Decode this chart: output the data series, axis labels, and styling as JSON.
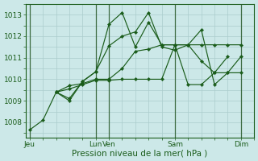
{
  "bg_color": "#cce8e8",
  "grid_color": "#aacccc",
  "line_color": "#1a5c1a",
  "marker_color": "#1a5c1a",
  "xlabel": "Pression niveau de la mer( hPa )",
  "ylim": [
    1007.3,
    1013.5
  ],
  "yticks": [
    1008,
    1009,
    1010,
    1011,
    1012,
    1013
  ],
  "major_xticks": [
    0,
    5,
    6,
    11,
    16
  ],
  "major_xlabels": [
    "Jeu",
    "Lun",
    "Ven",
    "Sam",
    "Dim"
  ],
  "xlim": [
    -0.3,
    17.0
  ],
  "series": [
    {
      "x": [
        0,
        1,
        2,
        3,
        4,
        5,
        6,
        7,
        8,
        9,
        10,
        11,
        12,
        13,
        14,
        15,
        16
      ],
      "y": [
        1007.65,
        1008.1,
        1009.4,
        1009.55,
        1009.75,
        1009.95,
        1009.95,
        1010.0,
        1010.0,
        1010.0,
        1010.0,
        1011.6,
        1011.6,
        1011.6,
        1011.6,
        1011.6,
        1011.6
      ]
    },
    {
      "x": [
        2,
        3,
        4,
        5,
        6,
        7,
        8,
        9,
        10,
        11,
        12,
        13,
        14,
        15,
        16
      ],
      "y": [
        1009.4,
        1009.7,
        1009.8,
        1010.0,
        1010.0,
        1010.5,
        1011.3,
        1011.4,
        1011.6,
        1011.6,
        1011.6,
        1010.85,
        1010.3,
        1010.3,
        1010.3
      ]
    },
    {
      "x": [
        2,
        3,
        4,
        5,
        6,
        7,
        8,
        9,
        10,
        11,
        12,
        13,
        14,
        15,
        16
      ],
      "y": [
        1009.4,
        1009.1,
        1009.9,
        1010.35,
        1011.55,
        1012.0,
        1012.2,
        1013.1,
        1011.5,
        1011.35,
        1011.6,
        1012.3,
        1009.75,
        1010.3,
        1011.05
      ]
    },
    {
      "x": [
        2,
        3,
        4,
        5,
        6,
        7,
        8,
        9,
        10,
        11,
        12,
        13,
        14,
        15
      ],
      "y": [
        1009.4,
        1009.0,
        1009.9,
        1010.35,
        1012.55,
        1013.1,
        1011.5,
        1012.65,
        1011.6,
        1011.6,
        1009.75,
        1009.75,
        1010.3,
        1011.05
      ]
    }
  ]
}
